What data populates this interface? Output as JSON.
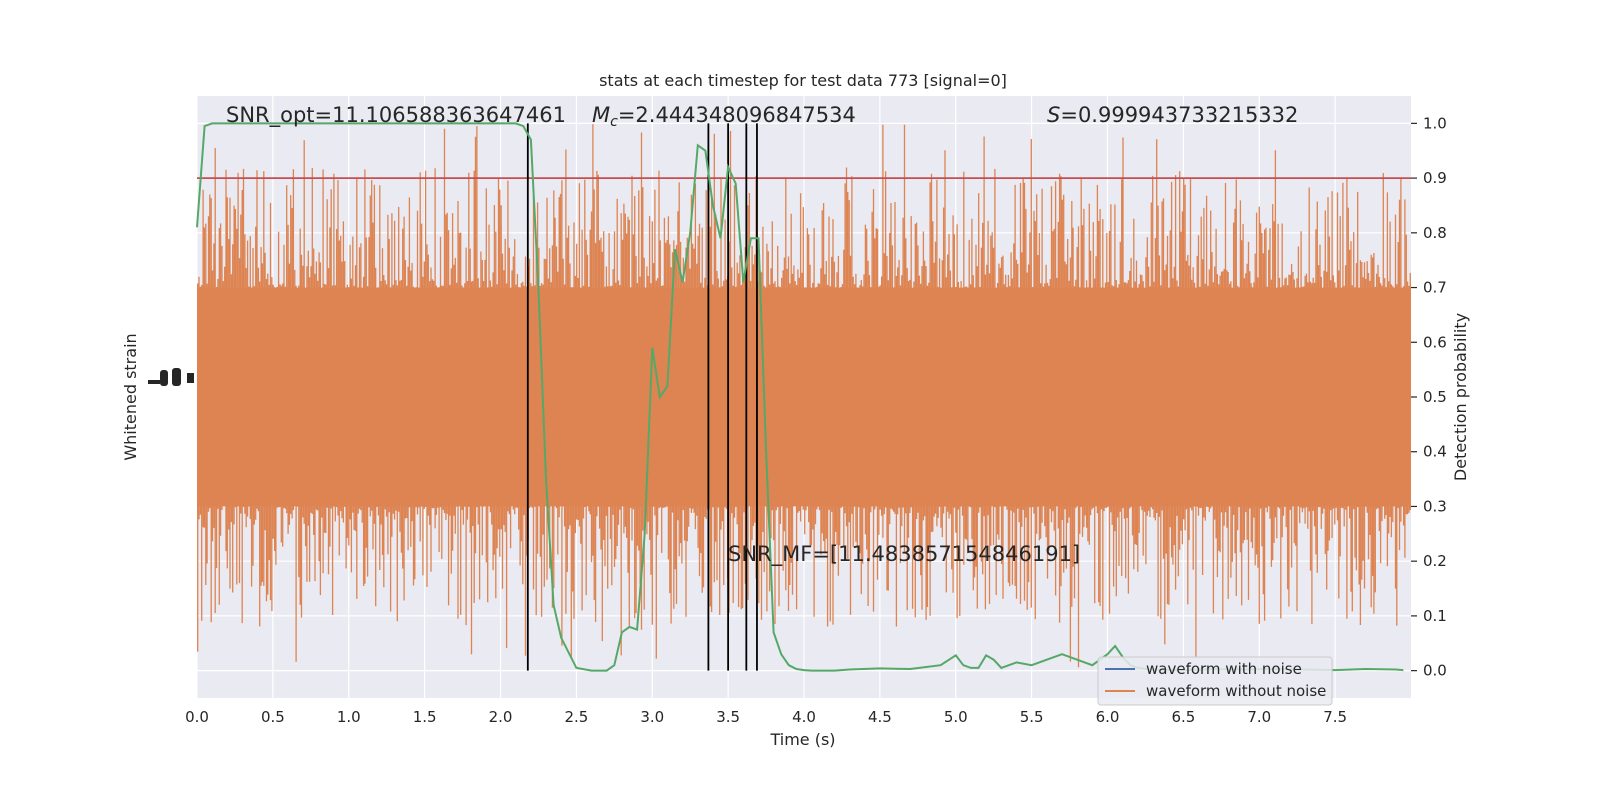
{
  "chart_data": {
    "type": "line",
    "title": "stats at each timestep for test data 773 [signal=0]",
    "xlabel": "Time (s)",
    "ylabel_left": "Whitened strain",
    "ylabel_right": "Detection probability",
    "xlim": [
      0.0,
      8.0
    ],
    "ylim_right": [
      -0.05,
      1.05
    ],
    "x_ticks": [
      "0.0",
      "0.5",
      "1.0",
      "1.5",
      "2.0",
      "2.5",
      "3.0",
      "3.5",
      "4.0",
      "4.5",
      "5.0",
      "5.5",
      "6.0",
      "6.5",
      "7.0",
      "7.5"
    ],
    "x_tick_values": [
      0.0,
      0.5,
      1.0,
      1.5,
      2.0,
      2.5,
      3.0,
      3.5,
      4.0,
      4.5,
      5.0,
      5.5,
      6.0,
      6.5,
      7.0,
      7.5
    ],
    "y_right_ticks": [
      "0.0",
      "0.1",
      "0.2",
      "0.3",
      "0.4",
      "0.5",
      "0.6",
      "0.7",
      "0.8",
      "0.9",
      "1.0"
    ],
    "y_right_tick_values": [
      0.0,
      0.1,
      0.2,
      0.3,
      0.4,
      0.5,
      0.6,
      0.7,
      0.8,
      0.9,
      1.0
    ],
    "threshold": 0.9,
    "vertical_lines": [
      2.18,
      3.37,
      3.5,
      3.62,
      3.69
    ],
    "grid": true,
    "legend_position": "lower-right",
    "legend": [
      {
        "label": "waveform with noise",
        "color": "#4c72b0"
      },
      {
        "label": "waveform without noise",
        "color": "#dd8452"
      }
    ],
    "annotations": {
      "snr_opt": "SNR_opt=11.106588363647461",
      "mc_symbol": "M",
      "mc_sub": "c",
      "mc_value": "=2.444348096847534",
      "s_symbol": "S",
      "s_value": "=0.999943733215332",
      "snr_mf": "SNR_MF=[11.483857154846191]"
    },
    "series": [
      {
        "name": "waveform without noise",
        "color": "#dd8452",
        "note_band": "dense strain trace spanning roughly the full axes",
        "core_range": [
          0.3,
          0.7
        ],
        "extreme_range": [
          0.0,
          1.0
        ]
      },
      {
        "name": "detection probability",
        "color": "#55a868",
        "x": [
          0.0,
          0.05,
          0.1,
          0.2,
          0.4,
          0.6,
          0.8,
          1.0,
          1.2,
          1.4,
          1.6,
          1.8,
          2.0,
          2.1,
          2.15,
          2.2,
          2.25,
          2.3,
          2.35,
          2.4,
          2.5,
          2.6,
          2.7,
          2.75,
          2.8,
          2.85,
          2.9,
          2.95,
          3.0,
          3.05,
          3.1,
          3.15,
          3.2,
          3.25,
          3.3,
          3.35,
          3.4,
          3.45,
          3.5,
          3.55,
          3.6,
          3.65,
          3.7,
          3.75,
          3.8,
          3.85,
          3.9,
          3.95,
          4.0,
          4.05,
          4.1,
          4.15,
          4.2,
          4.3,
          4.5,
          4.7,
          4.9,
          5.0,
          5.05,
          5.1,
          5.15,
          5.2,
          5.25,
          5.3,
          5.35,
          5.4,
          5.5,
          5.6,
          5.7,
          5.8,
          5.9,
          6.0,
          6.05,
          6.1,
          6.15,
          6.2,
          6.3,
          6.5,
          6.7,
          6.9,
          7.1,
          7.3,
          7.5,
          7.7,
          7.9,
          7.95
        ],
        "values": [
          0.81,
          0.995,
          1.0,
          1.0,
          1.0,
          1.0,
          1.0,
          1.0,
          1.0,
          1.0,
          1.0,
          1.0,
          1.0,
          1.0,
          0.995,
          0.97,
          0.7,
          0.35,
          0.12,
          0.06,
          0.005,
          0.0,
          0.0,
          0.01,
          0.07,
          0.08,
          0.075,
          0.25,
          0.59,
          0.5,
          0.52,
          0.77,
          0.71,
          0.8,
          0.96,
          0.95,
          0.85,
          0.79,
          0.92,
          0.89,
          0.71,
          0.79,
          0.79,
          0.4,
          0.07,
          0.03,
          0.01,
          0.003,
          0.001,
          0.0,
          0.0,
          0.0,
          0.0,
          0.002,
          0.004,
          0.003,
          0.01,
          0.028,
          0.01,
          0.005,
          0.005,
          0.028,
          0.02,
          0.005,
          0.01,
          0.015,
          0.01,
          0.02,
          0.03,
          0.02,
          0.01,
          0.03,
          0.045,
          0.025,
          0.01,
          0.005,
          0.002,
          0.001,
          0.003,
          0.002,
          0.003,
          0.002,
          0.001,
          0.003,
          0.002,
          0.001
        ]
      }
    ]
  }
}
